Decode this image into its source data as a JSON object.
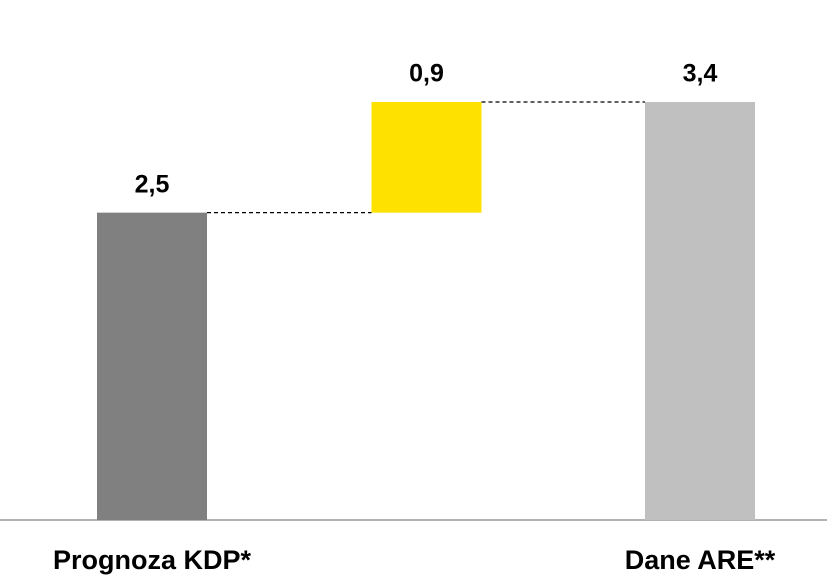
{
  "chart_data": {
    "type": "waterfall",
    "categories": [
      "Prognoza KDP*",
      null,
      "Dane ARE**"
    ],
    "values": [
      2.5,
      0.9,
      3.4
    ],
    "value_labels": [
      "2,5",
      "0,9",
      "3,4"
    ],
    "measures": [
      "absolute",
      "relative",
      "total"
    ],
    "colors": [
      "#808080",
      "#ffe100",
      "#c0c0c0"
    ],
    "connectors": true
  }
}
